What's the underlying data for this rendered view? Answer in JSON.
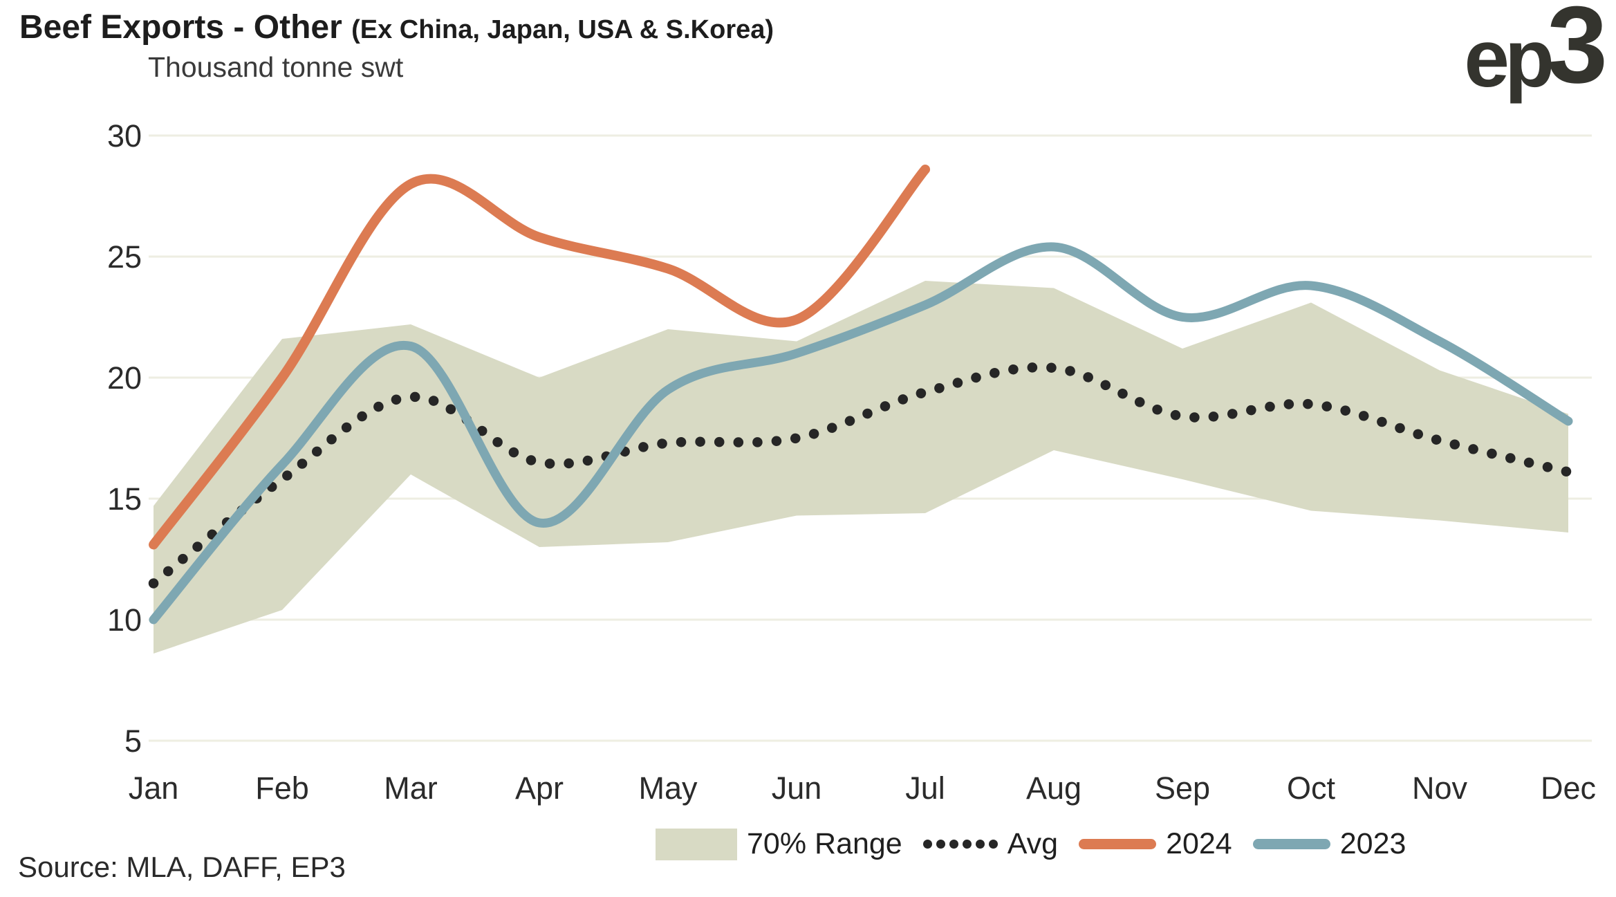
{
  "header": {
    "title_main": "Beef Exports - Other ",
    "title_paren": "(Ex China, Japan, USA & S.Korea)",
    "logo_ep": "ep",
    "logo_3": "3"
  },
  "axis": {
    "unit_label": "Thousand tonne swt"
  },
  "footer": {
    "source": "Source: MLA, DAFF, EP3"
  },
  "colors": {
    "band": "#d8dac4",
    "avg": "#262626",
    "y2024": "#dc7b52",
    "y2023": "#7ea7b2",
    "grid": "#eeeee2",
    "logo": "#34342e"
  },
  "legend": {
    "items": [
      {
        "label": "70% Range",
        "type": "area",
        "color": "#d8dac4"
      },
      {
        "label": "Avg",
        "type": "dotted",
        "color": "#262626"
      },
      {
        "label": "2024",
        "type": "line",
        "color": "#dc7b52"
      },
      {
        "label": "2023",
        "type": "line",
        "color": "#7ea7b2"
      }
    ]
  },
  "chart_data": {
    "type": "line",
    "title": "Beef Exports - Other (Ex China, Japan, USA & S.Korea)",
    "ylabel": "Thousand tonne swt",
    "categories": [
      "Jan",
      "Feb",
      "Mar",
      "Apr",
      "May",
      "Jun",
      "Jul",
      "Aug",
      "Sep",
      "Oct",
      "Nov",
      "Dec"
    ],
    "ylim": [
      5,
      30
    ],
    "yticks": [
      5,
      10,
      15,
      20,
      25,
      30
    ],
    "grid": "horizontal",
    "legend_position": "bottom",
    "band": {
      "name": "70% Range",
      "color": "#d8dac4",
      "low": [
        8.6,
        10.4,
        16.0,
        13.0,
        13.2,
        14.3,
        14.4,
        17.0,
        15.8,
        14.5,
        14.1,
        13.6
      ],
      "high": [
        14.7,
        21.6,
        22.2,
        20.0,
        22.0,
        21.5,
        24.0,
        23.7,
        21.2,
        23.1,
        20.3,
        18.5
      ]
    },
    "series": [
      {
        "name": "Avg",
        "style": "dotted",
        "color": "#262626",
        "values": [
          11.5,
          15.8,
          19.2,
          16.5,
          17.3,
          17.5,
          19.4,
          20.4,
          18.4,
          18.9,
          17.4,
          16.1
        ]
      },
      {
        "name": "2024",
        "style": "solid",
        "color": "#dc7b52",
        "values": [
          13.1,
          20.0,
          28.0,
          25.8,
          24.5,
          22.4,
          28.6
        ]
      },
      {
        "name": "2023",
        "style": "solid",
        "color": "#7ea7b2",
        "values": [
          10.0,
          16.4,
          21.3,
          14.0,
          19.5,
          21.0,
          23.0,
          25.4,
          22.5,
          23.8,
          21.5,
          18.2
        ]
      }
    ]
  }
}
